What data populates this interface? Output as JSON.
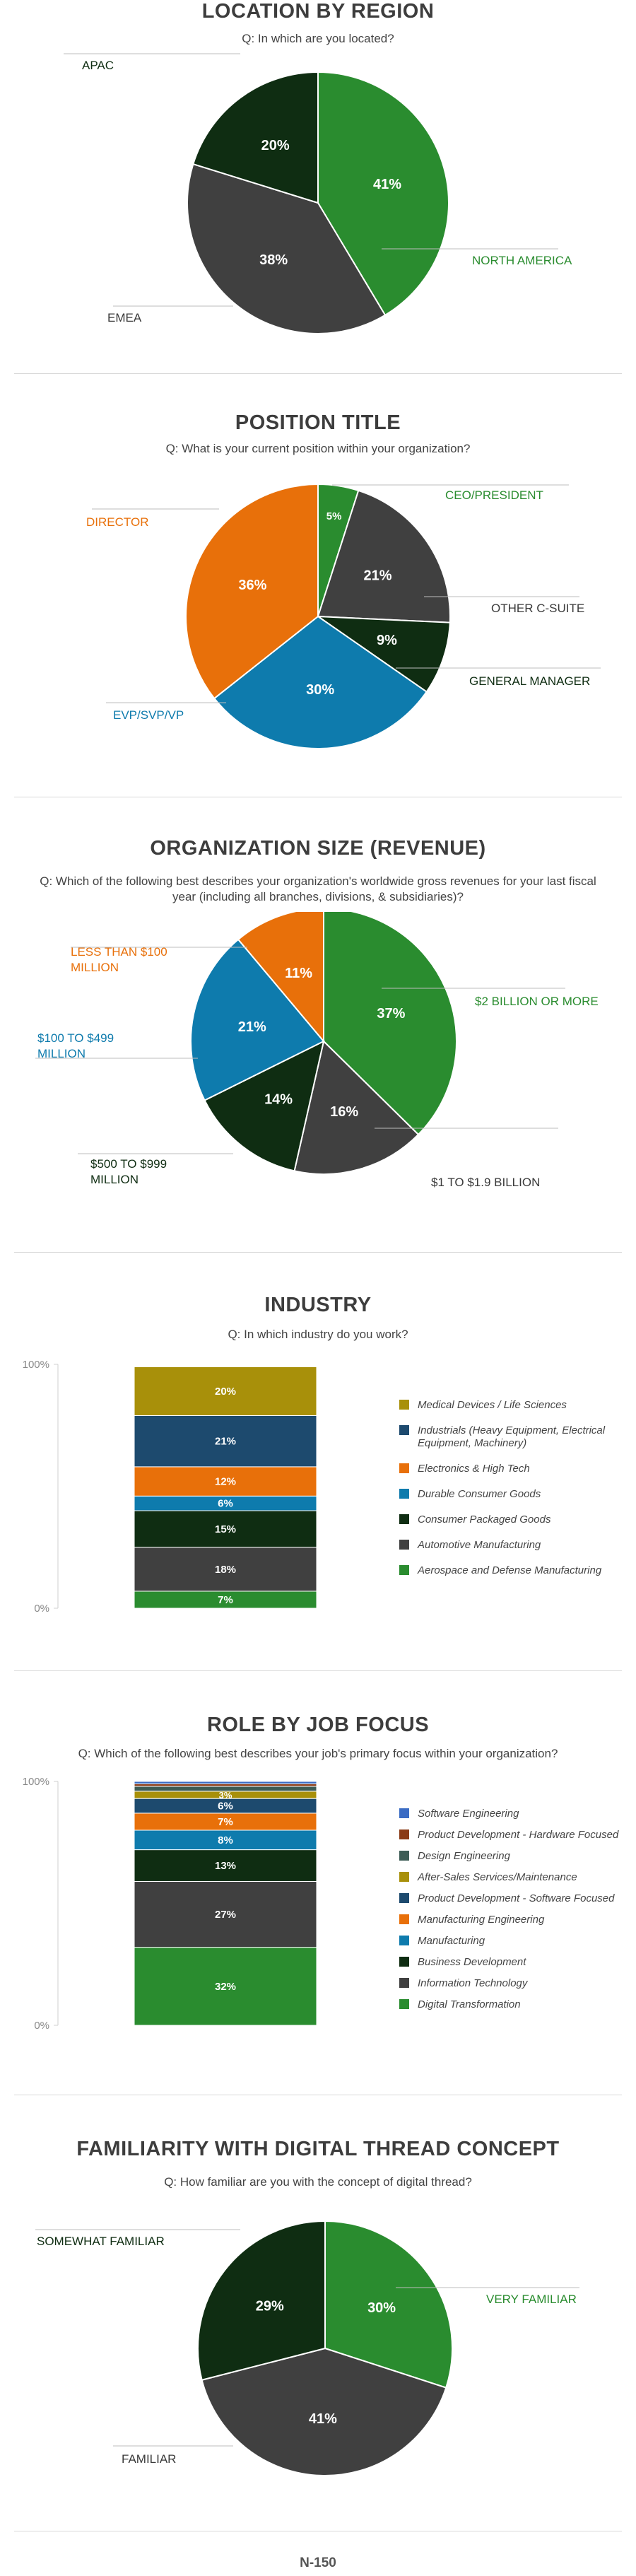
{
  "colors": {
    "green": "#2a8c2f",
    "dark_gray": "#404040",
    "dark_green": "#0f2d12",
    "orange": "#e8700a",
    "blue": "#0e7bad",
    "navy": "#1d4a6e",
    "olive": "#a8900a",
    "bright_blue": "#3b6cc4",
    "brown": "#8a3a16",
    "teal_gray": "#3d5c55"
  },
  "sections": {
    "region": {
      "title": "LOCATION BY REGION",
      "question": "Q: In which are you located?"
    },
    "position": {
      "title": "POSITION TITLE",
      "question": "Q: What is your current position within your organization?"
    },
    "org_size": {
      "title": "ORGANIZATION SIZE (REVENUE)",
      "question": "Q: Which of the following best describes your organization's worldwide gross revenues for your last fiscal year (including all branches, divisions, & subsidiaries)?"
    },
    "industry": {
      "title": "INDUSTRY",
      "question": "Q: In which industry do you work?"
    },
    "job_focus": {
      "title": "ROLE BY JOB FOCUS",
      "question": "Q: Which of the following best describes your job's primary focus within your organization?"
    },
    "familiarity": {
      "title": "FAMILIARITY WITH DIGITAL THREAD CONCEPT",
      "question": "Q: How familiar are you with the concept of digital thread?"
    }
  },
  "chart_data": [
    {
      "id": "region",
      "type": "pie",
      "title": "LOCATION BY REGION",
      "slices": [
        {
          "label": "NORTH AMERICA",
          "value": 41,
          "value_label": "41%",
          "color": "#2a8c2f"
        },
        {
          "label": "EMEA",
          "value": 38,
          "value_label": "38%",
          "color": "#404040"
        },
        {
          "label": "APAC",
          "value": 20,
          "value_label": "20%",
          "color": "#0f2d12"
        }
      ]
    },
    {
      "id": "position",
      "type": "pie",
      "title": "POSITION TITLE",
      "slices": [
        {
          "label": "CEO/PRESIDENT",
          "value": 5,
          "value_label": "5%",
          "color": "#2a8c2f"
        },
        {
          "label": "OTHER C-SUITE",
          "value": 21,
          "value_label": "21%",
          "color": "#404040"
        },
        {
          "label": "GENERAL MANAGER",
          "value": 9,
          "value_label": "9%",
          "color": "#0f2d12"
        },
        {
          "label": "EVP/SVP/VP",
          "value": 30,
          "value_label": "30%",
          "color": "#0e7bad"
        },
        {
          "label": "DIRECTOR",
          "value": 36,
          "value_label": "36%",
          "color": "#e8700a"
        }
      ]
    },
    {
      "id": "org_size",
      "type": "pie",
      "title": "ORGANIZATION SIZE (REVENUE)",
      "slices": [
        {
          "label": "$2 BILLION OR MORE",
          "value": 37,
          "value_label": "37%",
          "color": "#2a8c2f"
        },
        {
          "label": "$1 TO $1.9 BILLION",
          "value": 16,
          "value_label": "16%",
          "color": "#404040"
        },
        {
          "label": "$500 TO $999 MILLION",
          "value": 14,
          "value_label": "14%",
          "color": "#0f2d12"
        },
        {
          "label": "$100 TO $499 MILLION",
          "value": 21,
          "value_label": "21%",
          "color": "#0e7bad"
        },
        {
          "label": "LESS THAN $100 MILLION",
          "value": 11,
          "value_label": "11%",
          "color": "#e8700a"
        }
      ]
    },
    {
      "id": "industry",
      "type": "bar",
      "stacked": true,
      "title": "INDUSTRY",
      "ylim": [
        0,
        100
      ],
      "y_ticks": [
        "100%",
        "0%"
      ],
      "segments": [
        {
          "label": "Aerospace and Defense Manufacturing",
          "value": 7,
          "value_label": "7%",
          "color": "#2a8c2f"
        },
        {
          "label": "Automotive Manufacturing",
          "value": 18,
          "value_label": "18%",
          "color": "#404040"
        },
        {
          "label": "Consumer Packaged Goods",
          "value": 15,
          "value_label": "15%",
          "color": "#0f2d12"
        },
        {
          "label": "Durable Consumer Goods",
          "value": 6,
          "value_label": "6%",
          "color": "#0e7bad"
        },
        {
          "label": "Electronics & High Tech",
          "value": 12,
          "value_label": "12%",
          "color": "#e8700a"
        },
        {
          "label": "Industrials (Heavy Equipment, Electrical Equipment, Machinery)",
          "value": 21,
          "value_label": "21%",
          "color": "#1d4a6e"
        },
        {
          "label": "Medical Devices / Life Sciences",
          "value": 20,
          "value_label": "20%",
          "color": "#a8900a"
        }
      ],
      "legend_order": [
        "Medical Devices / Life Sciences",
        "Industrials (Heavy Equipment, Electrical Equipment, Machinery)",
        "Electronics & High Tech",
        "Durable Consumer Goods",
        "Consumer Packaged Goods",
        "Automotive Manufacturing",
        "Aerospace and Defense Manufacturing"
      ]
    },
    {
      "id": "job_focus",
      "type": "bar",
      "stacked": true,
      "title": "ROLE BY JOB FOCUS",
      "ylim": [
        0,
        100
      ],
      "y_ticks": [
        "100%",
        "0%"
      ],
      "segments": [
        {
          "label": "Digital Transformation",
          "value": 32,
          "value_label": "32%",
          "color": "#2a8c2f"
        },
        {
          "label": "Information Technology",
          "value": 27,
          "value_label": "27%",
          "color": "#404040"
        },
        {
          "label": "Business Development",
          "value": 13,
          "value_label": "13%",
          "color": "#0f2d12"
        },
        {
          "label": "Manufacturing",
          "value": 8,
          "value_label": "8%",
          "color": "#0e7bad"
        },
        {
          "label": "Manufacturing Engineering",
          "value": 7,
          "value_label": "7%",
          "color": "#e8700a"
        },
        {
          "label": "Product Development - Software Focused",
          "value": 6,
          "value_label": "6%",
          "color": "#1d4a6e"
        },
        {
          "label": "After-Sales Services/Maintenance",
          "value": 3,
          "value_label": "3%",
          "color": "#a8900a"
        },
        {
          "label": "Design Engineering",
          "value": 2,
          "value_label": "",
          "color": "#3d5c55"
        },
        {
          "label": "Product Development - Hardware Focused",
          "value": 1,
          "value_label": "",
          "color": "#8a3a16"
        },
        {
          "label": "Software Engineering",
          "value": 1,
          "value_label": "",
          "color": "#3b6cc4"
        }
      ],
      "legend_order": [
        "Software Engineering",
        "Product Development - Hardware Focused",
        "Design Engineering",
        "After-Sales Services/Maintenance",
        "Product Development - Software Focused",
        "Manufacturing Engineering",
        "Manufacturing",
        "Business Development",
        "Information Technology",
        "Digital Transformation"
      ]
    },
    {
      "id": "familiarity",
      "type": "pie",
      "title": "FAMILIARITY WITH DIGITAL THREAD CONCEPT",
      "slices": [
        {
          "label": "VERY FAMILIAR",
          "value": 30,
          "value_label": "30%",
          "color": "#2a8c2f"
        },
        {
          "label": "FAMILIAR",
          "value": 41,
          "value_label": "41%",
          "color": "#404040"
        },
        {
          "label": "SOMEWHAT FAMILIAR",
          "value": 29,
          "value_label": "29%",
          "color": "#0f2d12"
        }
      ]
    }
  ],
  "footer": {
    "sample": "N-150"
  }
}
